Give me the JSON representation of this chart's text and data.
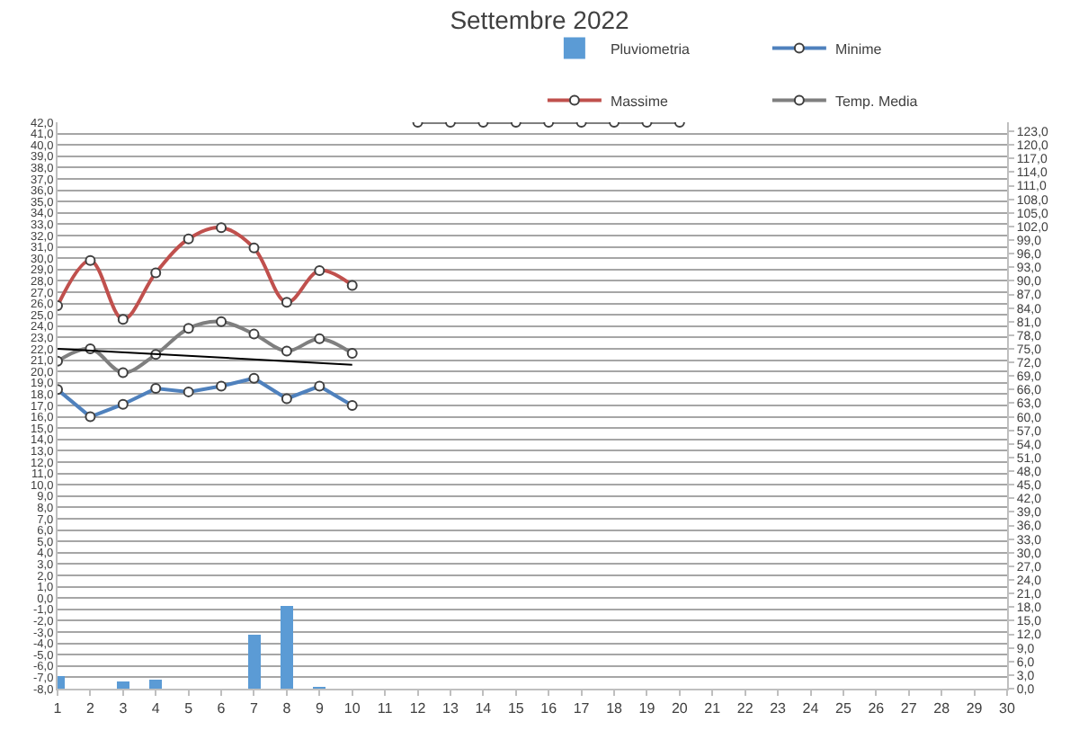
{
  "chart_data": {
    "type": "line",
    "title": "Settembre 2022",
    "x": [
      1,
      2,
      3,
      4,
      5,
      6,
      7,
      8,
      9,
      10,
      11,
      12,
      13,
      14,
      15,
      16,
      17,
      18,
      19,
      20
    ],
    "series": [
      {
        "name": "Pluviometria",
        "type": "bar",
        "axis": "y2",
        "color": "#5b9bd5",
        "values": [
          2.8,
          null,
          1.5,
          2.0,
          null,
          null,
          12.0,
          18.3,
          0.3,
          null,
          null,
          null,
          null,
          null,
          null,
          null,
          null,
          null,
          null,
          null
        ]
      },
      {
        "name": "Minime",
        "color": "#4f81bd",
        "marker": "circle",
        "values": [
          18.4,
          16.0,
          17.1,
          18.5,
          18.2,
          18.7,
          19.4,
          17.6,
          18.7,
          17.0,
          null,
          null,
          null,
          null,
          null,
          null,
          null,
          null,
          null,
          null
        ]
      },
      {
        "name": "Massime",
        "color": "#c0504d",
        "marker": "circle",
        "values": [
          25.8,
          29.8,
          24.6,
          28.7,
          31.7,
          32.7,
          30.9,
          26.1,
          28.9,
          27.6,
          null,
          null,
          null,
          null,
          null,
          null,
          null,
          null,
          null,
          null
        ]
      },
      {
        "name": "Temp. Media",
        "color": "#7f7f7f",
        "marker": "circle",
        "values": [
          20.9,
          22.0,
          19.9,
          21.5,
          23.8,
          24.4,
          23.3,
          21.8,
          22.9,
          21.6,
          null,
          42.0,
          42.0,
          42.0,
          42.0,
          42.0,
          42.0,
          42.0,
          42.0,
          42.0
        ]
      },
      {
        "type": "line",
        "color": "#000000",
        "marker": "none",
        "x": [
          1,
          10
        ],
        "values": [
          22.0,
          20.6
        ]
      }
    ],
    "xlim": [
      1,
      30
    ],
    "xticks": [
      1,
      2,
      3,
      4,
      5,
      6,
      7,
      8,
      9,
      10,
      11,
      12,
      13,
      14,
      15,
      16,
      17,
      18,
      19,
      20,
      21,
      22,
      23,
      24,
      25,
      26,
      27,
      28,
      29,
      30
    ],
    "ylim": [
      -8,
      42
    ],
    "yticks": [
      {
        "value": -8,
        "label": "-8,0"
      },
      {
        "value": -7,
        "label": "-7,0"
      },
      {
        "value": -6,
        "label": "-6,0"
      },
      {
        "value": -5,
        "label": "-5,0"
      },
      {
        "value": -4,
        "label": "-4,0"
      },
      {
        "value": -3,
        "label": "-3,0"
      },
      {
        "value": -2,
        "label": "-2,0"
      },
      {
        "value": -1,
        "label": "-1,0"
      },
      {
        "value": 0,
        "label": "0,0"
      },
      {
        "value": 1,
        "label": "1,0"
      },
      {
        "value": 2,
        "label": "2,0"
      },
      {
        "value": 3,
        "label": "3,0"
      },
      {
        "value": 4,
        "label": "4,0"
      },
      {
        "value": 5,
        "label": "5,0"
      },
      {
        "value": 6,
        "label": "6,0"
      },
      {
        "value": 7,
        "label": "7,0"
      },
      {
        "value": 8,
        "label": "8,0"
      },
      {
        "value": 9,
        "label": "9,0"
      },
      {
        "value": 10,
        "label": "10,0"
      },
      {
        "value": 11,
        "label": "11,0"
      },
      {
        "value": 12,
        "label": "12,0"
      },
      {
        "value": 13,
        "label": "13,0"
      },
      {
        "value": 14,
        "label": "14,0"
      },
      {
        "value": 15,
        "label": "15,0"
      },
      {
        "value": 16,
        "label": "16,0"
      },
      {
        "value": 17,
        "label": "17,0"
      },
      {
        "value": 18,
        "label": "18,0"
      },
      {
        "value": 19,
        "label": "19,0"
      },
      {
        "value": 20,
        "label": "20,0"
      },
      {
        "value": 21,
        "label": "21,0"
      },
      {
        "value": 22,
        "label": "22,0"
      },
      {
        "value": 23,
        "label": "23,0"
      },
      {
        "value": 24,
        "label": "24,0"
      },
      {
        "value": 25,
        "label": "25,0"
      },
      {
        "value": 26,
        "label": "26,0"
      },
      {
        "value": 27,
        "label": "27,0"
      },
      {
        "value": 28,
        "label": "28,0"
      },
      {
        "value": 29,
        "label": "29,0"
      },
      {
        "value": 30,
        "label": "30,0"
      },
      {
        "value": 31,
        "label": "31,0"
      },
      {
        "value": 32,
        "label": "32,0"
      },
      {
        "value": 33,
        "label": "33,0"
      },
      {
        "value": 34,
        "label": "34,0"
      },
      {
        "value": 35,
        "label": "35,0"
      },
      {
        "value": 36,
        "label": "36,0"
      },
      {
        "value": 37,
        "label": "37,0"
      },
      {
        "value": 38,
        "label": "38,0"
      },
      {
        "value": 39,
        "label": "39,0"
      },
      {
        "value": 40,
        "label": "40,0"
      },
      {
        "value": 41,
        "label": "41,0"
      },
      {
        "value": 42,
        "label": "42,0"
      }
    ],
    "y2lim": [
      0,
      125
    ],
    "y2ticks": [
      {
        "value": 0,
        "label": "0,0"
      },
      {
        "value": 3,
        "label": "3,0"
      },
      {
        "value": 6,
        "label": "6,0"
      },
      {
        "value": 9,
        "label": "9,0"
      },
      {
        "value": 12,
        "label": "12,0"
      },
      {
        "value": 15,
        "label": "15,0"
      },
      {
        "value": 18,
        "label": "18,0"
      },
      {
        "value": 21,
        "label": "21,0"
      },
      {
        "value": 24,
        "label": "24,0"
      },
      {
        "value": 27,
        "label": "27,0"
      },
      {
        "value": 30,
        "label": "30,0"
      },
      {
        "value": 33,
        "label": "33,0"
      },
      {
        "value": 36,
        "label": "36,0"
      },
      {
        "value": 39,
        "label": "39,0"
      },
      {
        "value": 42,
        "label": "42,0"
      },
      {
        "value": 45,
        "label": "45,0"
      },
      {
        "value": 48,
        "label": "48,0"
      },
      {
        "value": 51,
        "label": "51,0"
      },
      {
        "value": 54,
        "label": "54,0"
      },
      {
        "value": 57,
        "label": "57,0"
      },
      {
        "value": 60,
        "label": "60,0"
      },
      {
        "value": 63,
        "label": "63,0"
      },
      {
        "value": 66,
        "label": "66,0"
      },
      {
        "value": 69,
        "label": "69,0"
      },
      {
        "value": 72,
        "label": "72,0"
      },
      {
        "value": 75,
        "label": "75,0"
      },
      {
        "value": 78,
        "label": "78,0"
      },
      {
        "value": 81,
        "label": "81,0"
      },
      {
        "value": 84,
        "label": "84,0"
      },
      {
        "value": 87,
        "label": "87,0"
      },
      {
        "value": 90,
        "label": "90,0"
      },
      {
        "value": 93,
        "label": "93,0"
      },
      {
        "value": 96,
        "label": "96,0"
      },
      {
        "value": 99,
        "label": "99,0"
      },
      {
        "value": 102,
        "label": "102,0"
      },
      {
        "value": 105,
        "label": "105,0"
      },
      {
        "value": 108,
        "label": "108,0"
      },
      {
        "value": 111,
        "label": "111,0"
      },
      {
        "value": 114,
        "label": "114,0"
      },
      {
        "value": 117,
        "label": "117,0"
      },
      {
        "value": 120,
        "label": "120,0"
      },
      {
        "value": 123,
        "label": "123,0"
      }
    ],
    "grid": "y",
    "legend": "top right"
  }
}
